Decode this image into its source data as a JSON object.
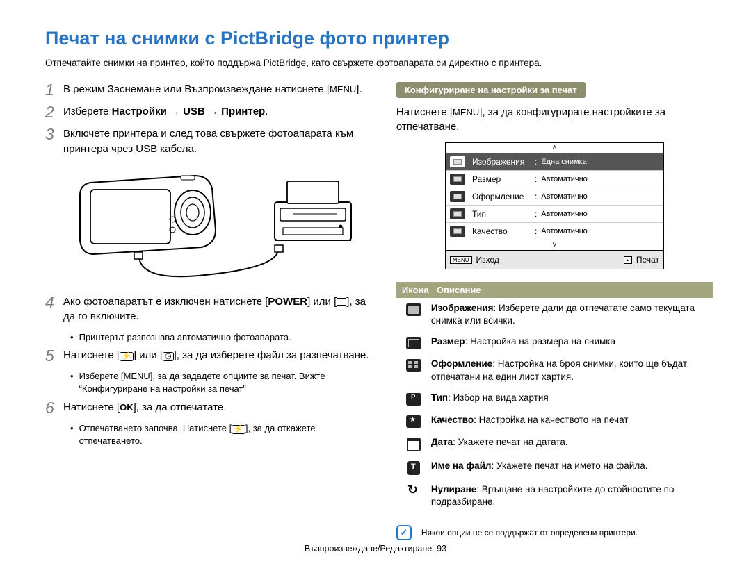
{
  "title": {
    "text": "Печат на снимки с PictBridge фото принтер",
    "color": "#2a74be"
  },
  "intro": "Отпечатайте снимки на принтер, който поддържа PictBridge, като свържете фотоапарата си директно с принтера.",
  "steps": [
    {
      "num": "1",
      "text_before": "В режим Заснемане или Възпроизвеждане натиснете [",
      "key": "MENU",
      "text_after": "]."
    },
    {
      "num": "2",
      "prefix": "Изберете ",
      "bold": "Настройки → USB → Принтер",
      "suffix": "."
    },
    {
      "num": "3",
      "text": "Включете принтера и след това свържете фотоапарата към принтера чрез USB кабела."
    },
    {
      "num": "4",
      "prefix": "Ако фотоапаратът е изключен натиснете [",
      "bold": "POWER",
      "mid": "] или [",
      "icon": "play",
      "suffix": "], за да го включите.",
      "sub": "Принтерът разпознава автоматично фотоапарата."
    },
    {
      "num": "5",
      "prefix": "Натиснете [",
      "icon1": "flash",
      "mid": "] или [",
      "icon2": "timer",
      "suffix": "], за да изберете файл за разпечатване.",
      "sub_pre": "Изберете [",
      "sub_key": "MENU",
      "sub_post": "], за да зададете опциите за печат. Вижте “Конфигуриране на настройки за печат”"
    },
    {
      "num": "6",
      "prefix": "Натиснете [",
      "ok": "OK",
      "suffix": "], за да отпечатате.",
      "sub_pre": "Отпечатването започва. Натиснете [",
      "sub_icon": "flash",
      "sub_post": "], за да откажете отпечатването."
    }
  ],
  "right": {
    "tag": "Конфигуриране на настройки за печат",
    "intro_pre": "Натиснете [",
    "intro_key": "MENU",
    "intro_post": "], за да конфигурирате настройките за отпечатване.",
    "menu_arrow_up": "˄",
    "menu_rows": [
      {
        "label": "Изображения",
        "value": "Една снимка",
        "selected": true
      },
      {
        "label": "Размер",
        "value": "Автоматично"
      },
      {
        "label": "Оформление",
        "value": "Автоматично"
      },
      {
        "label": "Тип",
        "value": "Автоматично"
      },
      {
        "label": "Качество",
        "value": "Автоматично"
      }
    ],
    "menu_arrow_down": "˅",
    "footer_left_key": "MENU",
    "footer_left": "Изход",
    "footer_right_key": "▸",
    "footer_right": "Печат",
    "header_icon": "Икона",
    "header_desc": "Описание",
    "descs": [
      {
        "icon": "photo",
        "bold": "Изображения",
        "text": ": Изберете дали да отпечатате само текущата снимка или всички."
      },
      {
        "icon": "size",
        "bold": "Размер",
        "text": ": Настройка на размера на снимка"
      },
      {
        "icon": "layout",
        "bold": "Оформление",
        "text": ": Настройка на броя снимки, които ще бъдат отпечатани на един лист хартия."
      },
      {
        "icon": "type",
        "bold": "Тип",
        "text": ": Избор на вида хартия"
      },
      {
        "icon": "quality",
        "bold": "Качество",
        "text": ": Настройка на качеството на печат"
      },
      {
        "icon": "date",
        "bold": "Дата",
        "text": ": Укажете печат на датата."
      },
      {
        "icon": "filename",
        "bold": "Име на файл",
        "text": ": Укажете печат на името на файла."
      },
      {
        "icon": "reset",
        "bold": "Нулиране",
        "text": ": Връщане на настройките до стойностите по подразбиране."
      }
    ],
    "note": "Някои опции не се поддържат от определени принтери."
  },
  "footer": {
    "section": "Възпроизвеждане/Редактиране",
    "page": "93"
  }
}
